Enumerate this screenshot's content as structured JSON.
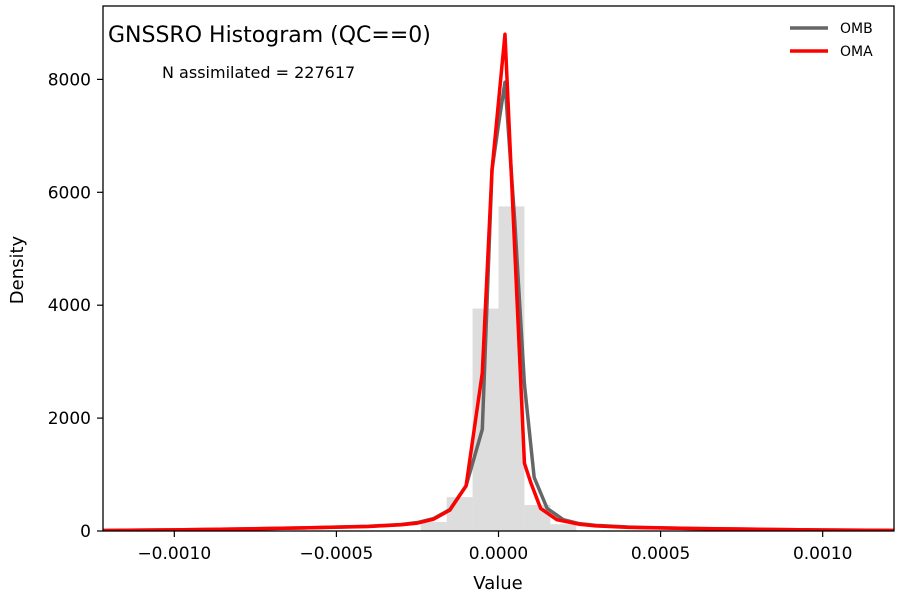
{
  "chart_data": {
    "type": "line",
    "title": "GNSSRO Histogram (QC==0)",
    "annotation": "N assimilated = 227617",
    "xlabel": "Value",
    "ylabel": "Density",
    "xlim": [
      -0.00122,
      0.00122
    ],
    "ylim": [
      0,
      9300
    ],
    "grid": false,
    "legend_position": "top-right",
    "x_ticks": [
      {
        "value": -0.001,
        "label": "−0.0010"
      },
      {
        "value": -0.0005,
        "label": "−0.0005"
      },
      {
        "value": 0.0,
        "label": "0.0000"
      },
      {
        "value": 0.0005,
        "label": "0.0005"
      },
      {
        "value": 0.001,
        "label": "0.0010"
      }
    ],
    "y_ticks": [
      {
        "value": 0,
        "label": "0"
      },
      {
        "value": 2000,
        "label": "2000"
      },
      {
        "value": 4000,
        "label": "4000"
      },
      {
        "value": 6000,
        "label": "6000"
      },
      {
        "value": 8000,
        "label": "8000"
      }
    ],
    "histogram": {
      "color": "#dddddd",
      "bins": [
        {
          "x0": -0.00024,
          "x1": -0.00016,
          "value": 160
        },
        {
          "x0": -0.00016,
          "x1": -8e-05,
          "value": 600
        },
        {
          "x0": -8e-05,
          "x1": 0.0,
          "value": 3940
        },
        {
          "x0": 0.0,
          "x1": 8e-05,
          "value": 5750
        },
        {
          "x0": 8e-05,
          "x1": 0.00016,
          "value": 460
        },
        {
          "x0": 0.00016,
          "x1": 0.00024,
          "value": 120
        }
      ]
    },
    "series": [
      {
        "name": "OMB",
        "color": "#666666",
        "points": [
          [
            -0.00122,
            10
          ],
          [
            -0.001,
            20
          ],
          [
            -0.0008,
            35
          ],
          [
            -0.0006,
            55
          ],
          [
            -0.0004,
            85
          ],
          [
            -0.0003,
            115
          ],
          [
            -0.00025,
            150
          ],
          [
            -0.0002,
            220
          ],
          [
            -0.00015,
            380
          ],
          [
            -0.0001,
            800
          ],
          [
            -5e-05,
            1800
          ],
          [
            -2e-05,
            6400
          ],
          [
            0.0,
            7200
          ],
          [
            2e-05,
            7950
          ],
          [
            5e-05,
            5500
          ],
          [
            8e-05,
            2600
          ],
          [
            0.00011,
            950
          ],
          [
            0.00015,
            400
          ],
          [
            0.0002,
            200
          ],
          [
            0.00025,
            130
          ],
          [
            0.0003,
            100
          ],
          [
            0.0004,
            70
          ],
          [
            0.0006,
            45
          ],
          [
            0.0008,
            30
          ],
          [
            0.001,
            18
          ],
          [
            0.00122,
            10
          ]
        ]
      },
      {
        "name": "OMA",
        "color": "#ff0000",
        "points": [
          [
            -0.00122,
            10
          ],
          [
            -0.001,
            20
          ],
          [
            -0.0008,
            35
          ],
          [
            -0.0006,
            55
          ],
          [
            -0.0004,
            80
          ],
          [
            -0.0003,
            110
          ],
          [
            -0.00025,
            140
          ],
          [
            -0.0002,
            210
          ],
          [
            -0.00015,
            370
          ],
          [
            -0.0001,
            800
          ],
          [
            -5e-05,
            2800
          ],
          [
            -2e-05,
            6400
          ],
          [
            2e-05,
            8800
          ],
          [
            5e-05,
            5000
          ],
          [
            8e-05,
            1200
          ],
          [
            0.0001,
            850
          ],
          [
            0.00013,
            400
          ],
          [
            0.00018,
            200
          ],
          [
            0.00025,
            120
          ],
          [
            0.0003,
            90
          ],
          [
            0.0004,
            65
          ],
          [
            0.0006,
            45
          ],
          [
            0.0008,
            30
          ],
          [
            0.001,
            18
          ],
          [
            0.00122,
            10
          ]
        ]
      }
    ]
  }
}
